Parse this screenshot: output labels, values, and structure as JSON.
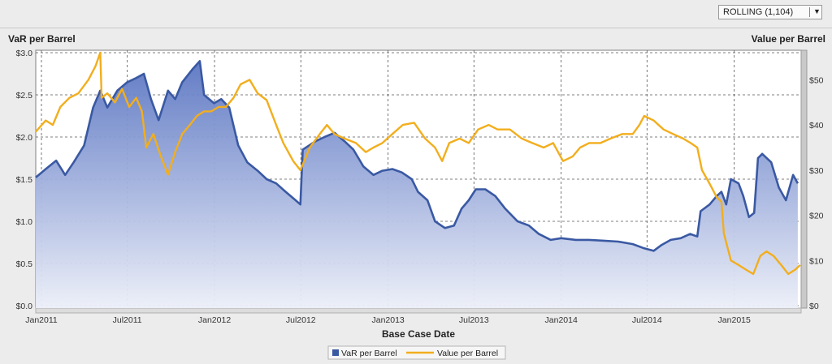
{
  "controls": {
    "window_select": "ROLLING (1,104)",
    "dropdown_arrow": "▼"
  },
  "chart_data": {
    "type": "line",
    "title": "",
    "xlabel": "Base Case Date",
    "ylabel_left": "VaR per Barrel",
    "ylabel_right": "Value per Barrel",
    "x_range": [
      "2010-12-20",
      "2015-05-22"
    ],
    "x_ticks": [
      "Jan2011",
      "Jul2011",
      "Jan2012",
      "Jul2012",
      "Jan2013",
      "Jul2013",
      "Jan2014",
      "Jul2014",
      "Jan2015"
    ],
    "y_left": {
      "min": 0,
      "max": 3.0,
      "ticks": [
        "$0.0",
        "$0.5",
        "$1.0",
        "$1.5",
        "$2.0",
        "$2.5",
        "$3.0"
      ]
    },
    "y_right": {
      "min": 0,
      "max": 56,
      "ticks": [
        "$0",
        "$10",
        "$20",
        "$30",
        "$40",
        "$50"
      ]
    },
    "grid": true,
    "legend_position": "bottom",
    "legend": [
      "VaR per Barrel",
      "Value per Barrel"
    ],
    "series": [
      {
        "name": "VaR per Barrel",
        "type": "area",
        "axis": "left",
        "color": "#3a59a3",
        "points": [
          [
            "2010-12-20",
            1.52
          ],
          [
            "2011-01-10",
            1.62
          ],
          [
            "2011-02-01",
            1.72
          ],
          [
            "2011-02-20",
            1.55
          ],
          [
            "2011-03-10",
            1.7
          ],
          [
            "2011-04-01",
            1.9
          ],
          [
            "2011-04-20",
            2.35
          ],
          [
            "2011-05-05",
            2.55
          ],
          [
            "2011-05-20",
            2.35
          ],
          [
            "2011-06-10",
            2.55
          ],
          [
            "2011-07-01",
            2.65
          ],
          [
            "2011-07-20",
            2.7
          ],
          [
            "2011-08-05",
            2.75
          ],
          [
            "2011-08-20",
            2.45
          ],
          [
            "2011-09-05",
            2.2
          ],
          [
            "2011-09-25",
            2.55
          ],
          [
            "2011-10-10",
            2.45
          ],
          [
            "2011-10-25",
            2.65
          ],
          [
            "2011-11-15",
            2.8
          ],
          [
            "2011-12-01",
            2.9
          ],
          [
            "2011-12-10",
            2.5
          ],
          [
            "2011-12-31",
            2.4
          ],
          [
            "2012-01-15",
            2.45
          ],
          [
            "2012-02-01",
            2.35
          ],
          [
            "2012-02-20",
            1.9
          ],
          [
            "2012-03-10",
            1.7
          ],
          [
            "2012-04-01",
            1.6
          ],
          [
            "2012-04-20",
            1.5
          ],
          [
            "2012-05-10",
            1.45
          ],
          [
            "2012-05-30",
            1.35
          ],
          [
            "2012-06-20",
            1.25
          ],
          [
            "2012-06-30",
            1.2
          ],
          [
            "2012-07-05",
            1.85
          ],
          [
            "2012-08-01",
            1.95
          ],
          [
            "2012-08-20",
            2.0
          ],
          [
            "2012-09-10",
            2.05
          ],
          [
            "2012-10-01",
            1.95
          ],
          [
            "2012-10-20",
            1.85
          ],
          [
            "2012-11-10",
            1.65
          ],
          [
            "2012-12-01",
            1.55
          ],
          [
            "2012-12-20",
            1.6
          ],
          [
            "2013-01-10",
            1.62
          ],
          [
            "2013-01-30",
            1.58
          ],
          [
            "2013-02-20",
            1.5
          ],
          [
            "2013-03-05",
            1.35
          ],
          [
            "2013-03-25",
            1.25
          ],
          [
            "2013-04-10",
            1.0
          ],
          [
            "2013-05-01",
            0.92
          ],
          [
            "2013-05-20",
            0.95
          ],
          [
            "2013-06-05",
            1.15
          ],
          [
            "2013-06-20",
            1.25
          ],
          [
            "2013-07-05",
            1.38
          ],
          [
            "2013-07-25",
            1.38
          ],
          [
            "2013-08-15",
            1.3
          ],
          [
            "2013-09-05",
            1.15
          ],
          [
            "2013-10-01",
            1.0
          ],
          [
            "2013-10-25",
            0.95
          ],
          [
            "2013-11-15",
            0.85
          ],
          [
            "2013-12-10",
            0.78
          ],
          [
            "2014-01-01",
            0.8
          ],
          [
            "2014-02-01",
            0.78
          ],
          [
            "2014-03-01",
            0.78
          ],
          [
            "2014-04-01",
            0.77
          ],
          [
            "2014-05-01",
            0.76
          ],
          [
            "2014-06-01",
            0.73
          ],
          [
            "2014-06-25",
            0.68
          ],
          [
            "2014-07-15",
            0.65
          ],
          [
            "2014-08-01",
            0.72
          ],
          [
            "2014-08-20",
            0.78
          ],
          [
            "2014-09-10",
            0.8
          ],
          [
            "2014-09-30",
            0.85
          ],
          [
            "2014-10-15",
            0.82
          ],
          [
            "2014-10-22",
            1.12
          ],
          [
            "2014-11-10",
            1.2
          ],
          [
            "2014-11-25",
            1.3
          ],
          [
            "2014-12-05",
            1.35
          ],
          [
            "2014-12-15",
            1.2
          ],
          [
            "2014-12-25",
            1.5
          ],
          [
            "2015-01-10",
            1.45
          ],
          [
            "2015-01-20",
            1.3
          ],
          [
            "2015-02-01",
            1.05
          ],
          [
            "2015-02-12",
            1.1
          ],
          [
            "2015-02-20",
            1.75
          ],
          [
            "2015-03-01",
            1.8
          ],
          [
            "2015-03-20",
            1.7
          ],
          [
            "2015-04-05",
            1.4
          ],
          [
            "2015-04-20",
            1.25
          ],
          [
            "2015-05-05",
            1.55
          ],
          [
            "2015-05-15",
            1.45
          ]
        ]
      },
      {
        "name": "Value per Barrel",
        "type": "line",
        "axis": "right",
        "color": "#f2ae1d",
        "points": [
          [
            "2010-12-20",
            38.5
          ],
          [
            "2011-01-10",
            41.0
          ],
          [
            "2011-01-25",
            40.0
          ],
          [
            "2011-02-10",
            44.0
          ],
          [
            "2011-03-01",
            46.0
          ],
          [
            "2011-03-20",
            47.0
          ],
          [
            "2011-04-10",
            50.0
          ],
          [
            "2011-04-25",
            53.0
          ],
          [
            "2011-05-05",
            56.0
          ],
          [
            "2011-05-08",
            46.0
          ],
          [
            "2011-05-20",
            47.0
          ],
          [
            "2011-06-05",
            45.0
          ],
          [
            "2011-06-20",
            48.0
          ],
          [
            "2011-07-05",
            44.0
          ],
          [
            "2011-07-20",
            46.0
          ],
          [
            "2011-08-01",
            43.0
          ],
          [
            "2011-08-10",
            35.0
          ],
          [
            "2011-08-25",
            38.0
          ],
          [
            "2011-09-10",
            33.0
          ],
          [
            "2011-09-25",
            29.0
          ],
          [
            "2011-10-10",
            34.0
          ],
          [
            "2011-10-25",
            38.0
          ],
          [
            "2011-11-10",
            40.0
          ],
          [
            "2011-11-25",
            42.0
          ],
          [
            "2011-12-10",
            43.0
          ],
          [
            "2011-12-25",
            43.0
          ],
          [
            "2012-01-10",
            44.0
          ],
          [
            "2012-01-25",
            44.0
          ],
          [
            "2012-02-10",
            46.0
          ],
          [
            "2012-02-25",
            49.0
          ],
          [
            "2012-03-15",
            50.0
          ],
          [
            "2012-04-01",
            47.0
          ],
          [
            "2012-04-20",
            45.5
          ],
          [
            "2012-05-10",
            40.0
          ],
          [
            "2012-05-25",
            36.0
          ],
          [
            "2012-06-15",
            32.0
          ],
          [
            "2012-06-30",
            30.0
          ],
          [
            "2012-07-20",
            35.0
          ],
          [
            "2012-08-10",
            38.0
          ],
          [
            "2012-08-25",
            40.0
          ],
          [
            "2012-09-10",
            38.0
          ],
          [
            "2012-10-01",
            37.0
          ],
          [
            "2012-10-25",
            36.0
          ],
          [
            "2012-11-15",
            34.0
          ],
          [
            "2012-12-01",
            35.0
          ],
          [
            "2012-12-20",
            36.0
          ],
          [
            "2013-01-10",
            38.0
          ],
          [
            "2013-02-01",
            40.0
          ],
          [
            "2013-02-25",
            40.5
          ],
          [
            "2013-03-20",
            37.0
          ],
          [
            "2013-04-10",
            35.0
          ],
          [
            "2013-04-25",
            32.0
          ],
          [
            "2013-05-10",
            36.0
          ],
          [
            "2013-06-01",
            37.0
          ],
          [
            "2013-06-20",
            36.0
          ],
          [
            "2013-07-10",
            39.0
          ],
          [
            "2013-08-01",
            40.0
          ],
          [
            "2013-08-20",
            39.0
          ],
          [
            "2013-09-15",
            39.0
          ],
          [
            "2013-10-10",
            37.0
          ],
          [
            "2013-11-01",
            36.0
          ],
          [
            "2013-11-25",
            35.0
          ],
          [
            "2013-12-15",
            36.0
          ],
          [
            "2014-01-05",
            32.0
          ],
          [
            "2014-01-25",
            33.0
          ],
          [
            "2014-02-10",
            35.0
          ],
          [
            "2014-03-01",
            36.0
          ],
          [
            "2014-03-25",
            36.0
          ],
          [
            "2014-04-15",
            37.0
          ],
          [
            "2014-05-10",
            38.0
          ],
          [
            "2014-06-01",
            38.0
          ],
          [
            "2014-06-15",
            40.0
          ],
          [
            "2014-06-25",
            42.0
          ],
          [
            "2014-07-15",
            41.0
          ],
          [
            "2014-08-05",
            39.0
          ],
          [
            "2014-08-25",
            38.0
          ],
          [
            "2014-09-15",
            37.0
          ],
          [
            "2014-10-01",
            36.0
          ],
          [
            "2014-10-15",
            35.0
          ],
          [
            "2014-10-25",
            30.0
          ],
          [
            "2014-11-10",
            27.0
          ],
          [
            "2014-11-25",
            24.0
          ],
          [
            "2014-12-05",
            23.0
          ],
          [
            "2014-12-10",
            16.0
          ],
          [
            "2014-12-25",
            10.0
          ],
          [
            "2015-01-10",
            9.0
          ],
          [
            "2015-01-25",
            8.0
          ],
          [
            "2015-02-10",
            7.0
          ],
          [
            "2015-02-25",
            11.0
          ],
          [
            "2015-03-10",
            12.0
          ],
          [
            "2015-03-25",
            11.0
          ],
          [
            "2015-04-10",
            9.0
          ],
          [
            "2015-04-25",
            7.0
          ],
          [
            "2015-05-10",
            8.0
          ],
          [
            "2015-05-20",
            9.0
          ]
        ]
      }
    ]
  }
}
